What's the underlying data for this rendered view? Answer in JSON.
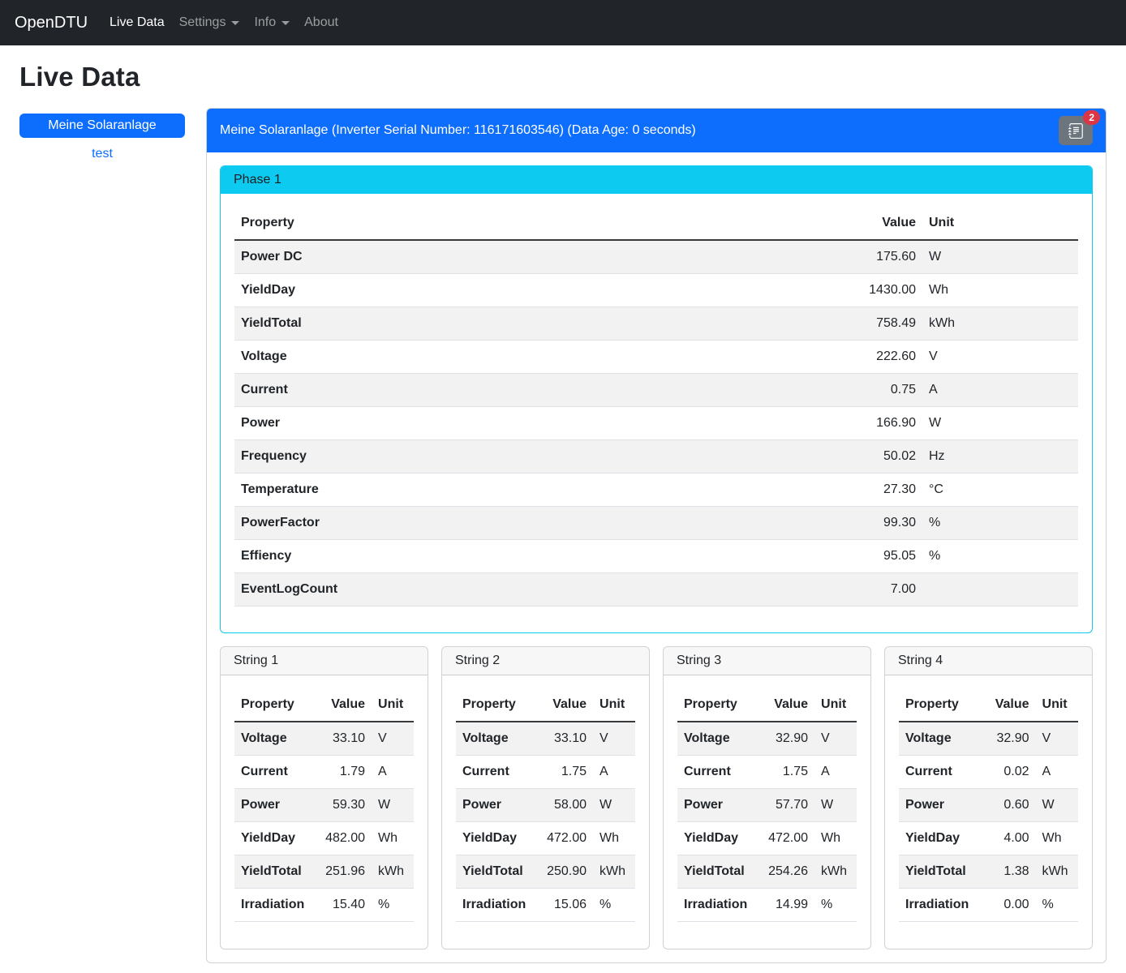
{
  "colors": {
    "navbar_bg": "#212529",
    "primary_blue": "#0d6efd",
    "info_cyan": "#0dcaf0",
    "danger_red": "#dc3545",
    "button_gray": "#6c757d"
  },
  "navbar": {
    "brand": "OpenDTU",
    "items": [
      {
        "label": "Live Data",
        "active": true,
        "dropdown": false
      },
      {
        "label": "Settings",
        "active": false,
        "dropdown": true
      },
      {
        "label": "Info",
        "active": false,
        "dropdown": true
      },
      {
        "label": "About",
        "active": false,
        "dropdown": false
      }
    ]
  },
  "page_title": "Live Data",
  "sidebar": {
    "inverters": [
      {
        "label": "Meine Solaranlage",
        "selected": true
      },
      {
        "label": "test",
        "selected": false
      }
    ]
  },
  "inverter_panel": {
    "header": "Meine Solaranlage (Inverter Serial Number: 116171603546) (Data Age: 0 seconds)",
    "eventlog_button": {
      "icon": "journal-text-icon",
      "badge_count": "2"
    },
    "phase": {
      "title": "Phase 1",
      "columns": [
        "Property",
        "Value",
        "Unit"
      ],
      "rows": [
        [
          "Power DC",
          "175.60",
          "W"
        ],
        [
          "YieldDay",
          "1430.00",
          "Wh"
        ],
        [
          "YieldTotal",
          "758.49",
          "kWh"
        ],
        [
          "Voltage",
          "222.60",
          "V"
        ],
        [
          "Current",
          "0.75",
          "A"
        ],
        [
          "Power",
          "166.90",
          "W"
        ],
        [
          "Frequency",
          "50.02",
          "Hz"
        ],
        [
          "Temperature",
          "27.30",
          "°C"
        ],
        [
          "PowerFactor",
          "99.30",
          "%"
        ],
        [
          "Effiency",
          "95.05",
          "%"
        ],
        [
          "EventLogCount",
          "7.00",
          ""
        ]
      ]
    },
    "strings": [
      {
        "title": "String 1",
        "columns": [
          "Property",
          "Value",
          "Unit"
        ],
        "rows": [
          [
            "Voltage",
            "33.10",
            "V"
          ],
          [
            "Current",
            "1.79",
            "A"
          ],
          [
            "Power",
            "59.30",
            "W"
          ],
          [
            "YieldDay",
            "482.00",
            "Wh"
          ],
          [
            "YieldTotal",
            "251.96",
            "kWh"
          ],
          [
            "Irradiation",
            "15.40",
            "%"
          ]
        ]
      },
      {
        "title": "String 2",
        "columns": [
          "Property",
          "Value",
          "Unit"
        ],
        "rows": [
          [
            "Voltage",
            "33.10",
            "V"
          ],
          [
            "Current",
            "1.75",
            "A"
          ],
          [
            "Power",
            "58.00",
            "W"
          ],
          [
            "YieldDay",
            "472.00",
            "Wh"
          ],
          [
            "YieldTotal",
            "250.90",
            "kWh"
          ],
          [
            "Irradiation",
            "15.06",
            "%"
          ]
        ]
      },
      {
        "title": "String 3",
        "columns": [
          "Property",
          "Value",
          "Unit"
        ],
        "rows": [
          [
            "Voltage",
            "32.90",
            "V"
          ],
          [
            "Current",
            "1.75",
            "A"
          ],
          [
            "Power",
            "57.70",
            "W"
          ],
          [
            "YieldDay",
            "472.00",
            "Wh"
          ],
          [
            "YieldTotal",
            "254.26",
            "kWh"
          ],
          [
            "Irradiation",
            "14.99",
            "%"
          ]
        ]
      },
      {
        "title": "String 4",
        "columns": [
          "Property",
          "Value",
          "Unit"
        ],
        "rows": [
          [
            "Voltage",
            "32.90",
            "V"
          ],
          [
            "Current",
            "0.02",
            "A"
          ],
          [
            "Power",
            "0.60",
            "W"
          ],
          [
            "YieldDay",
            "4.00",
            "Wh"
          ],
          [
            "YieldTotal",
            "1.38",
            "kWh"
          ],
          [
            "Irradiation",
            "0.00",
            "%"
          ]
        ]
      }
    ]
  }
}
